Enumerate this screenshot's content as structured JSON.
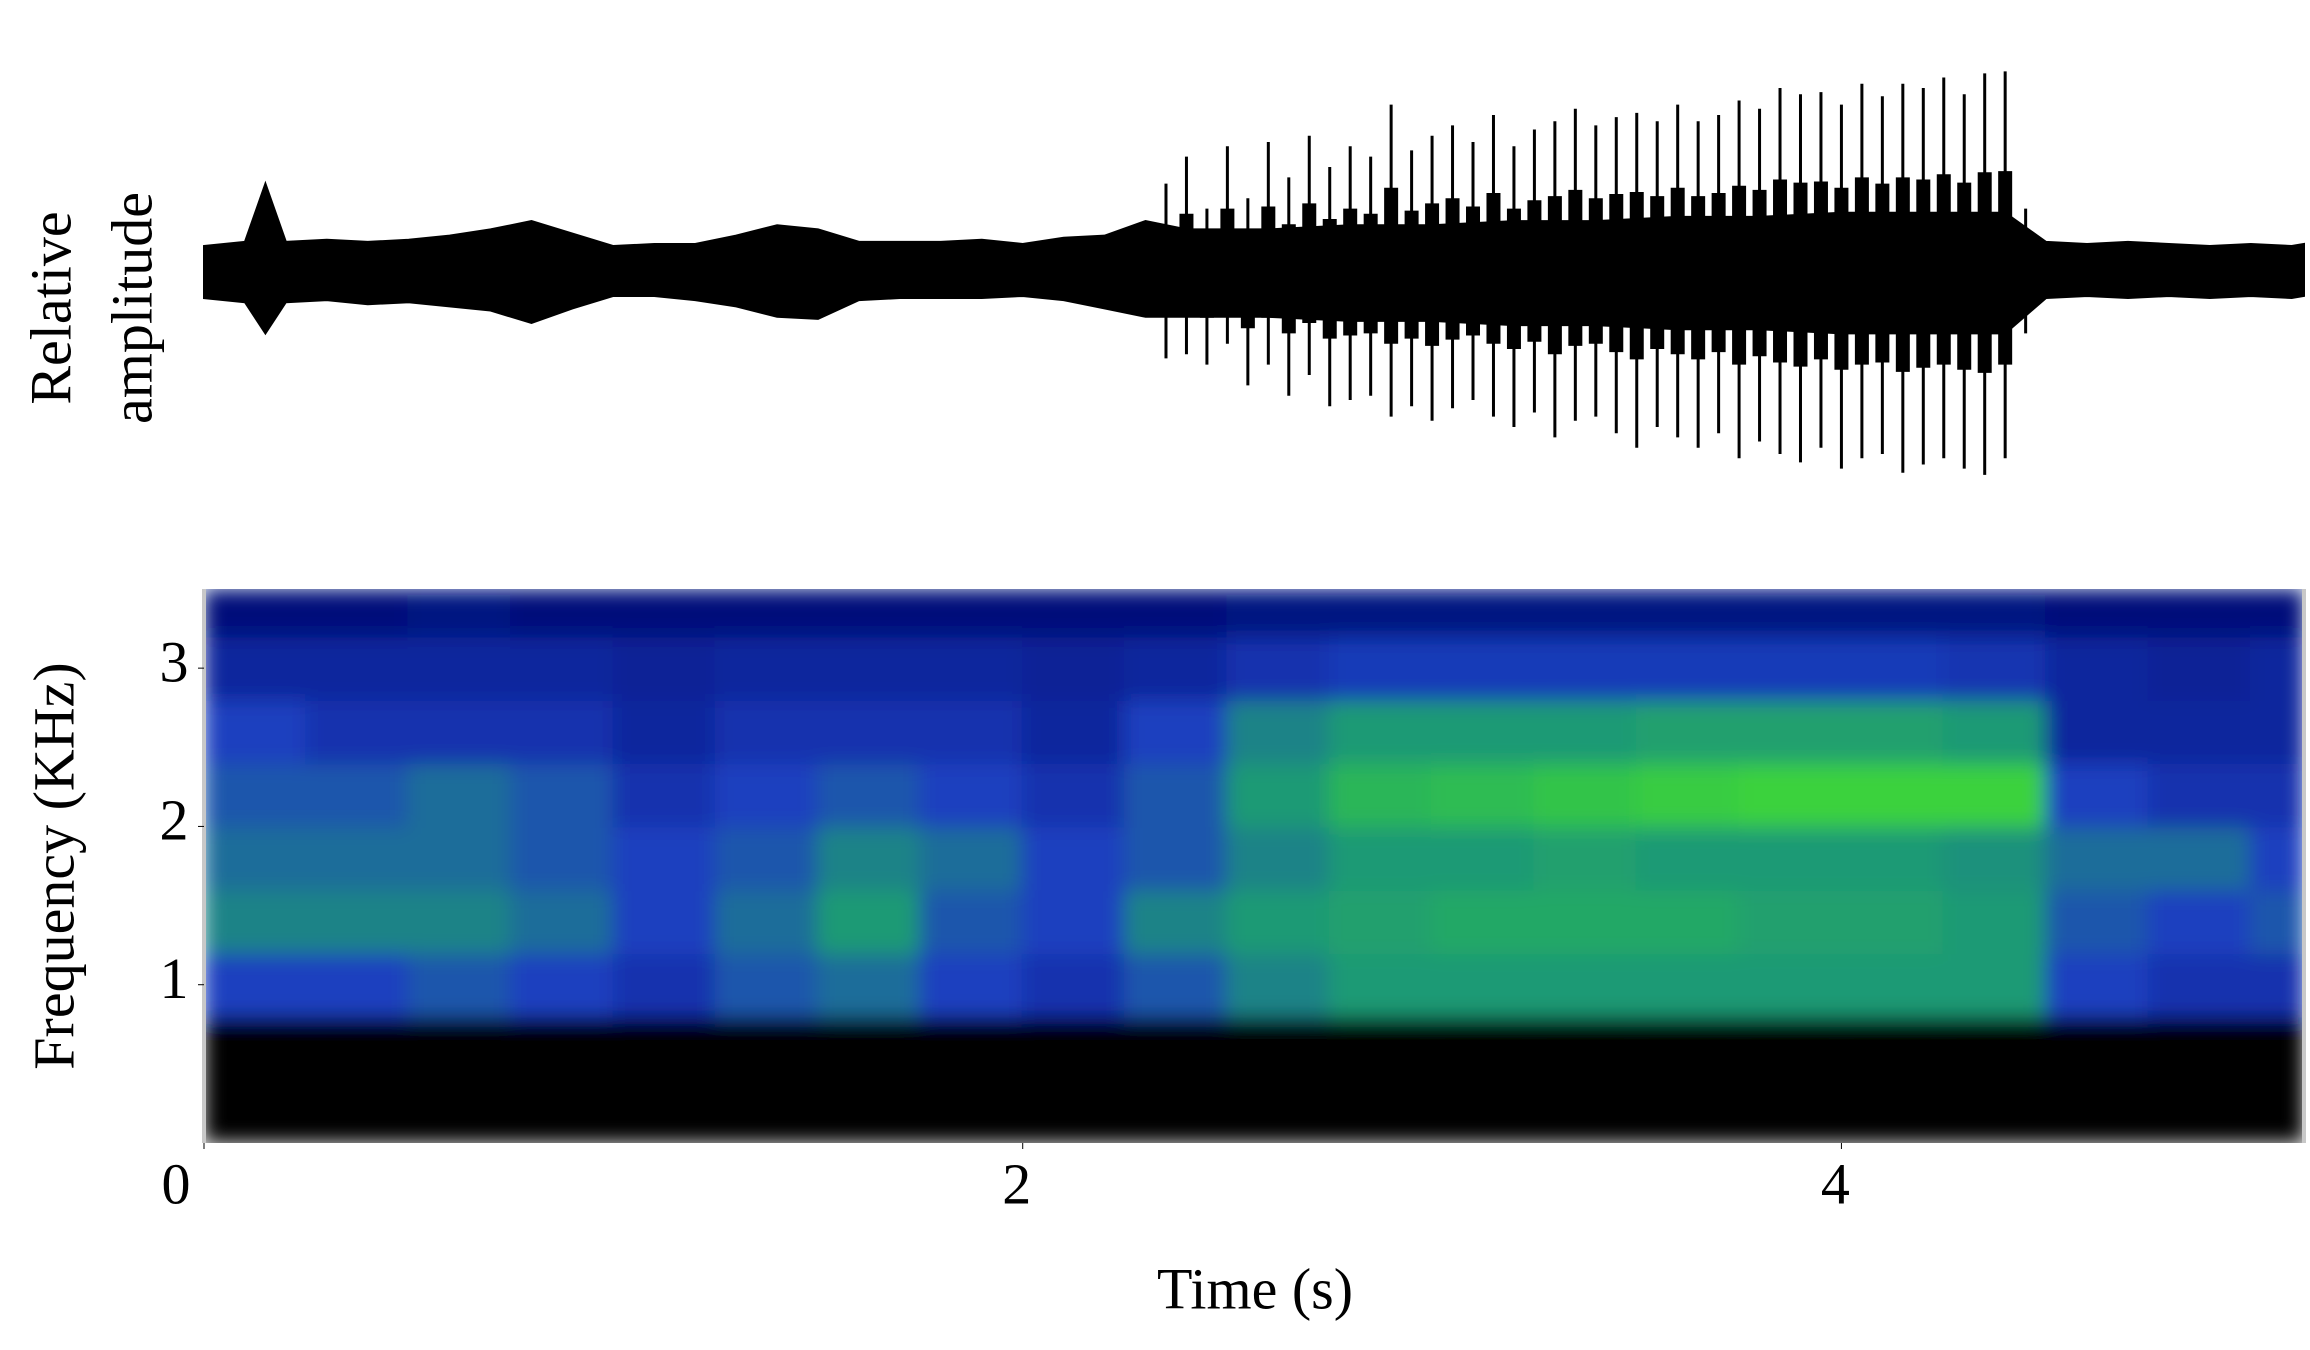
{
  "chart_data": [
    {
      "type": "waveform",
      "ylabel": [
        "Relative",
        "amplitude"
      ],
      "xlim": [
        0,
        5.13
      ],
      "ylim": [
        -1,
        1
      ],
      "color": "#000000",
      "noise": {
        "x": [
          0,
          0.1,
          0.15,
          0.2,
          0.3,
          0.4,
          0.5,
          0.6,
          0.7,
          0.8,
          0.9,
          1.0,
          1.1,
          1.2,
          1.3,
          1.4,
          1.5,
          1.6,
          1.7,
          1.8,
          1.9,
          2.0,
          2.1,
          2.2,
          2.3,
          2.4,
          2.6,
          2.8,
          3.0,
          3.2,
          3.4,
          3.6,
          3.8,
          4.0,
          4.2,
          4.4,
          4.5,
          4.6,
          4.7,
          4.8,
          4.9,
          5.0,
          5.1,
          5.13
        ],
        "upper": [
          0.12,
          0.14,
          0.42,
          0.14,
          0.15,
          0.14,
          0.15,
          0.17,
          0.2,
          0.24,
          0.18,
          0.12,
          0.13,
          0.13,
          0.17,
          0.22,
          0.2,
          0.14,
          0.14,
          0.14,
          0.15,
          0.13,
          0.16,
          0.17,
          0.24,
          0.2,
          0.2,
          0.22,
          0.22,
          0.24,
          0.24,
          0.26,
          0.26,
          0.28,
          0.28,
          0.28,
          0.14,
          0.13,
          0.14,
          0.13,
          0.12,
          0.13,
          0.12,
          0.13
        ],
        "lower": [
          -0.13,
          -0.15,
          -0.3,
          -0.15,
          -0.14,
          -0.16,
          -0.15,
          -0.17,
          -0.19,
          -0.25,
          -0.18,
          -0.12,
          -0.12,
          -0.14,
          -0.17,
          -0.22,
          -0.23,
          -0.14,
          -0.13,
          -0.13,
          -0.13,
          -0.12,
          -0.14,
          -0.18,
          -0.22,
          -0.22,
          -0.22,
          -0.24,
          -0.24,
          -0.26,
          -0.26,
          -0.28,
          -0.28,
          -0.3,
          -0.3,
          -0.3,
          -0.13,
          -0.12,
          -0.13,
          -0.12,
          -0.13,
          -0.12,
          -0.13,
          -0.12
        ]
      },
      "pulses": {
        "x": [
          2.35,
          2.4,
          2.45,
          2.5,
          2.55,
          2.6,
          2.65,
          2.7,
          2.75,
          2.8,
          2.85,
          2.9,
          2.95,
          3.0,
          3.05,
          3.1,
          3.15,
          3.2,
          3.25,
          3.3,
          3.35,
          3.4,
          3.45,
          3.5,
          3.55,
          3.6,
          3.65,
          3.7,
          3.75,
          3.8,
          3.85,
          3.9,
          3.95,
          4.0,
          4.05,
          4.1,
          4.15,
          4.2,
          4.25,
          4.3,
          4.35,
          4.4,
          4.45
        ],
        "upper": [
          0.42,
          0.55,
          0.3,
          0.6,
          0.35,
          0.62,
          0.45,
          0.65,
          0.5,
          0.6,
          0.55,
          0.8,
          0.58,
          0.65,
          0.7,
          0.62,
          0.75,
          0.6,
          0.68,
          0.72,
          0.78,
          0.7,
          0.74,
          0.76,
          0.72,
          0.8,
          0.72,
          0.75,
          0.82,
          0.78,
          0.88,
          0.85,
          0.86,
          0.8,
          0.9,
          0.84,
          0.9,
          0.88,
          0.93,
          0.85,
          0.95,
          0.96,
          0.3
        ],
        "lower": [
          -0.42,
          -0.4,
          -0.45,
          -0.35,
          -0.55,
          -0.45,
          -0.6,
          -0.5,
          -0.65,
          -0.62,
          -0.6,
          -0.7,
          -0.65,
          -0.72,
          -0.66,
          -0.62,
          -0.7,
          -0.75,
          -0.68,
          -0.8,
          -0.72,
          -0.7,
          -0.78,
          -0.85,
          -0.75,
          -0.8,
          -0.85,
          -0.78,
          -0.9,
          -0.82,
          -0.88,
          -0.92,
          -0.85,
          -0.95,
          -0.9,
          -0.88,
          -0.97,
          -0.93,
          -0.9,
          -0.95,
          -0.98,
          -0.9,
          -0.3
        ]
      }
    },
    {
      "type": "heatmap",
      "xlabel": "Time (s)",
      "ylabel": "Frequency (KHz)",
      "xlim": [
        0,
        5.13
      ],
      "ylim": [
        0,
        3.5
      ],
      "xticks": [
        0,
        2,
        4
      ],
      "yticks": [
        1,
        2,
        3
      ],
      "colormap": [
        "#000000",
        "#00107a",
        "#1c3fbf",
        "#1d9a74",
        "#3ad23c",
        "#e4f12a"
      ],
      "x": [
        0,
        0.25,
        0.5,
        0.75,
        1.0,
        1.25,
        1.5,
        1.75,
        2.0,
        2.25,
        2.5,
        2.75,
        3.0,
        3.25,
        3.5,
        3.75,
        4.0,
        4.25,
        4.5,
        4.75,
        5.0,
        5.13
      ],
      "y": [
        0,
        0.8,
        1.2,
        1.6,
        2.0,
        2.4,
        2.8,
        3.2,
        3.5
      ],
      "z": [
        [
          0,
          0,
          0,
          0,
          0,
          0,
          0,
          0,
          0,
          0,
          0,
          0,
          0,
          0,
          0,
          0,
          0,
          0,
          0,
          0,
          0
        ],
        [
          0.4,
          0.4,
          0.45,
          0.4,
          0.35,
          0.45,
          0.5,
          0.4,
          0.35,
          0.45,
          0.55,
          0.6,
          0.6,
          0.6,
          0.6,
          0.6,
          0.6,
          0.6,
          0.4,
          0.35,
          0.35
        ],
        [
          0.55,
          0.55,
          0.55,
          0.5,
          0.4,
          0.5,
          0.6,
          0.45,
          0.4,
          0.55,
          0.6,
          0.62,
          0.65,
          0.65,
          0.65,
          0.62,
          0.62,
          0.6,
          0.45,
          0.4,
          0.45
        ],
        [
          0.5,
          0.5,
          0.5,
          0.45,
          0.4,
          0.45,
          0.55,
          0.5,
          0.4,
          0.45,
          0.55,
          0.6,
          0.6,
          0.62,
          0.6,
          0.6,
          0.6,
          0.58,
          0.5,
          0.5,
          0.4
        ],
        [
          0.45,
          0.45,
          0.5,
          0.45,
          0.35,
          0.4,
          0.45,
          0.4,
          0.35,
          0.45,
          0.6,
          0.7,
          0.72,
          0.75,
          0.78,
          0.8,
          0.8,
          0.8,
          0.4,
          0.35,
          0.35
        ],
        [
          0.4,
          0.35,
          0.35,
          0.35,
          0.3,
          0.35,
          0.35,
          0.35,
          0.3,
          0.4,
          0.55,
          0.6,
          0.6,
          0.6,
          0.62,
          0.62,
          0.62,
          0.6,
          0.3,
          0.3,
          0.3
        ],
        [
          0.3,
          0.3,
          0.3,
          0.3,
          0.28,
          0.3,
          0.3,
          0.3,
          0.28,
          0.3,
          0.35,
          0.38,
          0.38,
          0.38,
          0.38,
          0.38,
          0.38,
          0.36,
          0.3,
          0.28,
          0.3
        ],
        [
          0.2,
          0.2,
          0.22,
          0.2,
          0.2,
          0.2,
          0.2,
          0.2,
          0.2,
          0.2,
          0.22,
          0.22,
          0.22,
          0.22,
          0.22,
          0.22,
          0.22,
          0.22,
          0.2,
          0.2,
          0.2
        ]
      ]
    }
  ]
}
